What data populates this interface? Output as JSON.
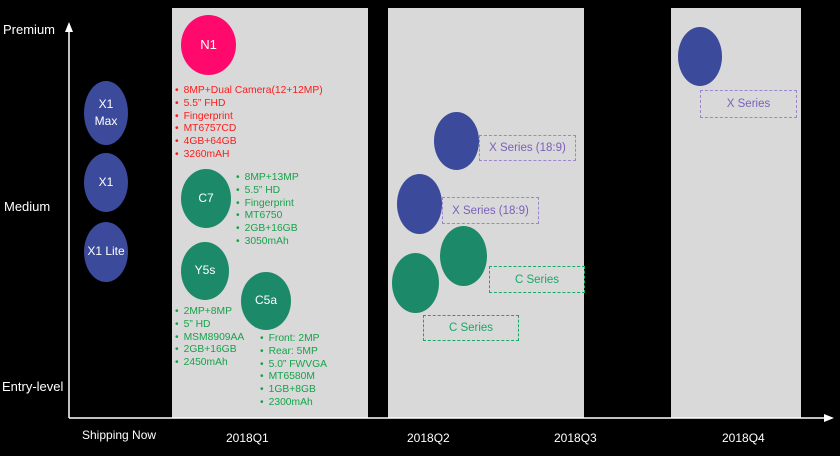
{
  "yaxis": {
    "premium": "Premium",
    "medium": "Medium",
    "entry": "Entry-level"
  },
  "xaxis": {
    "now": "Shipping Now",
    "q1": "2018Q1",
    "q2": "2018Q2",
    "q3": "2018Q3",
    "q4": "2018Q4"
  },
  "bubbles": {
    "x1max": "X1\nMax",
    "x1": "X1",
    "x1lite": "X1 Lite",
    "n1": "N1",
    "c7": "C7",
    "y5s": "Y5s",
    "c5a": "C5a"
  },
  "specs": {
    "n1": [
      "8MP+Dual Camera(12+12MP)",
      "5.5” FHD",
      "Fingerprint",
      "MT6757CD",
      "4GB+64GB",
      "3260mAH"
    ],
    "c7": [
      "8MP+13MP",
      "5.5” HD",
      "Fingerprint",
      "MT6750",
      "2GB+16GB",
      "3050mAh"
    ],
    "y5s": [
      "2MP+8MP",
      "5” HD",
      "MSM8909AA",
      "2GB+16GB",
      "2450mAh"
    ],
    "c5a": [
      "Front: 2MP",
      "Rear: 5MP",
      "5.0” FWVGA",
      "MT6580M",
      "1GB+8GB",
      "2300mAh"
    ]
  },
  "labels": {
    "xseries189_a": "X Series (18:9)",
    "xseries189_b": "X Series (18:9)",
    "cseries_a": "C Series",
    "cseries_b": "C Series",
    "xseries_q4": "X Series"
  },
  "colors": {
    "blue": "#3b4a9b",
    "green": "#1c8a68",
    "pink": "#ff0a6c",
    "panel": "#d9d9d9"
  }
}
